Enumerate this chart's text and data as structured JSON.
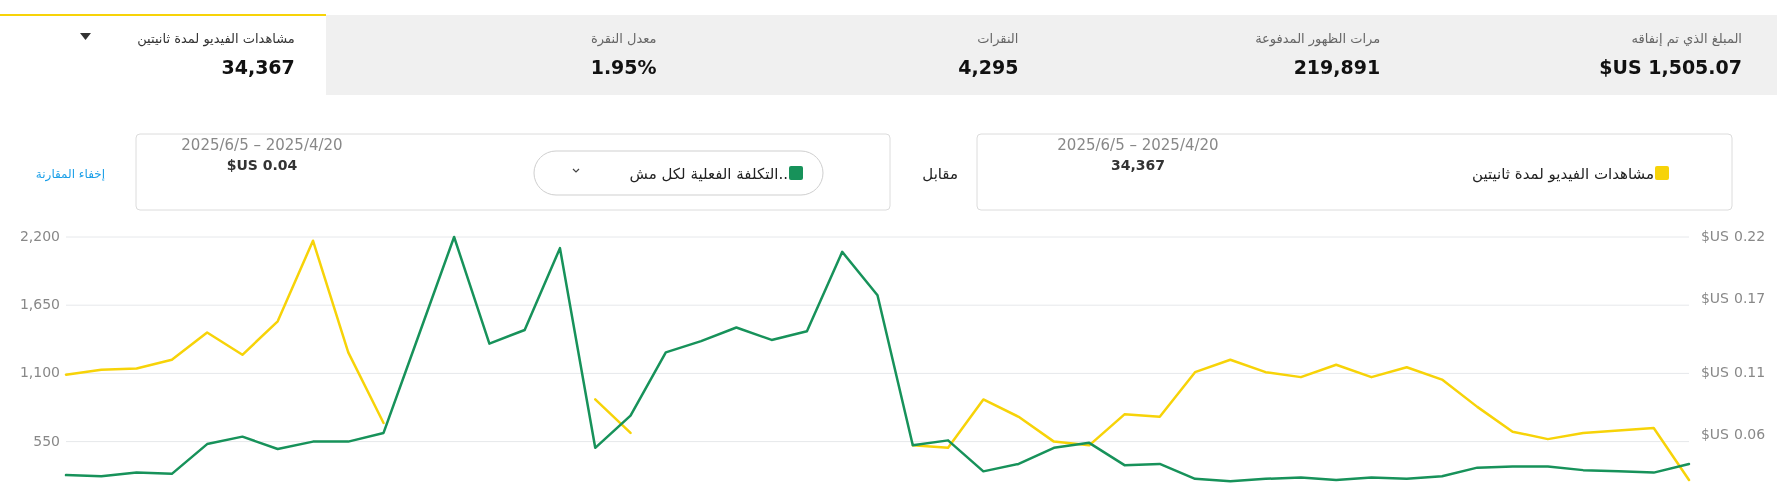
{
  "chart_data": [
    {
      "type": "other",
      "annotations": [
        "المبلغ الذي تم إنفاقه",
        "$US 1,505.07",
        "مرات الظهور المدفوعة",
        "219,891",
        "النقرات",
        "4,295",
        "معدل النقرة",
        "1.95%",
        "مشاهدات الفيديو لمدة ثانيتين",
        "34,367"
      ]
    },
    {
      "type": "line",
      "legend": "top",
      "grid": "y",
      "tick_labels": "y",
      "categories": [
        null,
        null,
        null,
        null,
        null,
        null,
        null,
        null,
        null,
        null,
        null,
        null,
        null,
        null,
        null,
        null,
        null,
        null,
        null,
        null,
        null,
        null,
        null,
        null,
        null,
        null,
        null,
        null,
        null,
        null,
        null,
        null,
        null,
        null,
        null,
        null,
        null,
        null,
        null,
        null,
        null,
        null,
        null,
        null,
        null,
        null,
        null
      ],
      "ylim": [
        192,
        2200
      ],
      "yticks": [
        {
          "value": 550,
          "label": "550"
        },
        {
          "value": 1100,
          "label": "1,100"
        },
        {
          "value": 1650,
          "label": "1,650"
        },
        {
          "value": 2200,
          "label": "2,200"
        }
      ],
      "y2lim": [
        0.0192,
        0.22
      ],
      "y2label": "$US",
      "y2ticks": [
        0.06,
        0.11,
        0.17,
        0.22
      ],
      "series": [
        {
          "name": "مشاهدات الفيديو لمدة ثانيتين",
          "color": "#f7d308",
          "values": [
            1090,
            1130,
            1140,
            1210,
            1430,
            1250,
            1520,
            2170,
            1270,
            700,
            null,
            null,
            null,
            null,
            null,
            890,
            620,
            null,
            null,
            null,
            null,
            null,
            null,
            null,
            520,
            500,
            890,
            750,
            550,
            520,
            770,
            750,
            1110,
            1210,
            1110,
            1070,
            1170,
            1070,
            1150,
            1050,
            830,
            630,
            570,
            620,
            640,
            660,
            240
          ]
        },
        {
          "name": "التكلفة الفعلية لكل مش..",
          "color": "#17925a",
          "axis": "y2",
          "values": [
            0.028,
            0.027,
            0.03,
            0.029,
            0.053,
            0.059,
            0.049,
            0.055,
            0.055,
            0.062,
            0.141,
            0.22,
            0.134,
            0.145,
            0.211,
            0.05,
            0.076,
            0.127,
            0.136,
            0.147,
            0.137,
            0.144,
            0.208,
            0.173,
            0.052,
            0.056,
            0.031,
            0.037,
            0.05,
            0.054,
            0.036,
            0.037,
            0.025,
            0.023,
            0.025,
            0.026,
            0.024,
            0.026,
            0.025,
            0.027,
            0.034,
            0.035,
            0.035,
            0.032,
            0.031,
            0.03,
            0.037
          ]
        }
      ],
      "annotations": [
        "2025/6/5 – 2025/4/20",
        "34,367",
        "مقابل",
        "2025/6/5 – 2025/4/20",
        "$US 0.04",
        "إخفاء المقارنة"
      ]
    }
  ]
}
